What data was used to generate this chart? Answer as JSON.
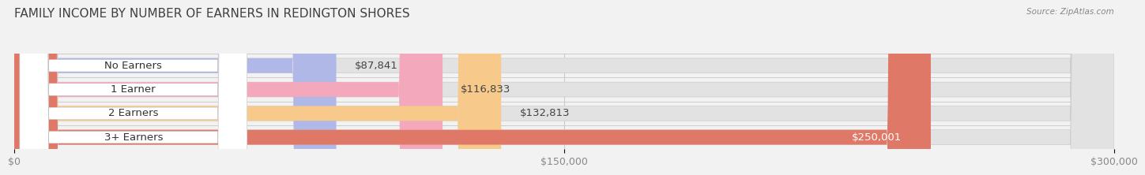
{
  "title": "FAMILY INCOME BY NUMBER OF EARNERS IN REDINGTON SHORES",
  "source": "Source: ZipAtlas.com",
  "categories": [
    "No Earners",
    "1 Earner",
    "2 Earners",
    "3+ Earners"
  ],
  "values": [
    87841,
    116833,
    132813,
    250001
  ],
  "labels": [
    "$87,841",
    "$116,833",
    "$132,813",
    "$250,001"
  ],
  "bar_colors": [
    "#b0b8e8",
    "#f4a8bc",
    "#f7c98a",
    "#e07868"
  ],
  "label_bg_colors": [
    "#b0b8e8",
    "#f4a8bc",
    "#f7c98a",
    "#e07868"
  ],
  "background_color": "#f2f2f2",
  "bar_bg_color": "#e2e2e2",
  "xlim": [
    0,
    300000
  ],
  "xticks": [
    0,
    150000,
    300000
  ],
  "xticklabels": [
    "$0",
    "$150,000",
    "$300,000"
  ],
  "title_fontsize": 11,
  "label_fontsize": 9.5,
  "tick_fontsize": 9,
  "bar_height": 0.62,
  "bar_gap": 0.38
}
